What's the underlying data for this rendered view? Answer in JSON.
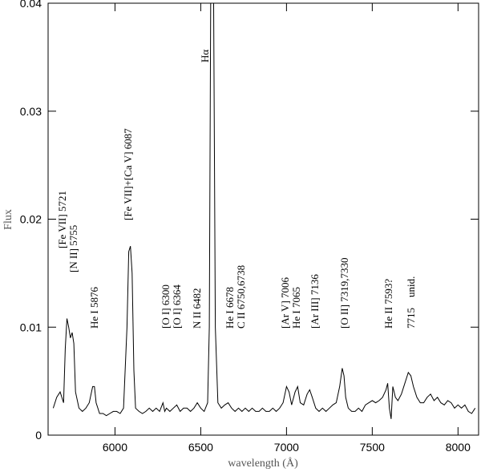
{
  "chart_data": {
    "type": "line",
    "x_label": "wavelength (Å)",
    "y_label": "Flux",
    "color": "#000000",
    "xlim": [
      5610,
      8120
    ],
    "ylim": [
      0,
      0.04
    ],
    "xticks": [
      6000,
      6500,
      7000,
      7500,
      8000
    ],
    "yticks": [
      0,
      0.01,
      0.02,
      0.03,
      0.04
    ],
    "x": [
      5640,
      5660,
      5680,
      5700,
      5710,
      5720,
      5730,
      5740,
      5750,
      5760,
      5770,
      5790,
      5810,
      5830,
      5850,
      5870,
      5880,
      5890,
      5910,
      5930,
      5950,
      5970,
      5990,
      6010,
      6030,
      6050,
      6070,
      6080,
      6090,
      6100,
      6110,
      6120,
      6140,
      6160,
      6180,
      6200,
      6220,
      6240,
      6260,
      6280,
      6290,
      6300,
      6320,
      6340,
      6360,
      6380,
      6400,
      6420,
      6440,
      6460,
      6480,
      6500,
      6520,
      6540,
      6550,
      6558,
      6575,
      6585,
      6600,
      6620,
      6640,
      6660,
      6680,
      6700,
      6720,
      6740,
      6760,
      6780,
      6800,
      6820,
      6840,
      6860,
      6880,
      6900,
      6920,
      6940,
      6960,
      6980,
      7000,
      7015,
      7030,
      7050,
      7065,
      7080,
      7100,
      7120,
      7135,
      7150,
      7170,
      7190,
      7210,
      7230,
      7250,
      7270,
      7290,
      7310,
      7325,
      7335,
      7345,
      7360,
      7380,
      7400,
      7420,
      7440,
      7460,
      7480,
      7500,
      7520,
      7540,
      7560,
      7580,
      7590,
      7600,
      7610,
      7620,
      7635,
      7650,
      7670,
      7690,
      7710,
      7725,
      7740,
      7760,
      7780,
      7800,
      7820,
      7840,
      7860,
      7880,
      7900,
      7920,
      7940,
      7960,
      7980,
      8000,
      8020,
      8040,
      8060,
      8080,
      8100
    ],
    "values": [
      0.0025,
      0.0035,
      0.004,
      0.003,
      0.008,
      0.0108,
      0.01,
      0.009,
      0.0095,
      0.0085,
      0.004,
      0.0025,
      0.0022,
      0.0025,
      0.003,
      0.0045,
      0.0045,
      0.003,
      0.002,
      0.002,
      0.0018,
      0.002,
      0.0022,
      0.0022,
      0.002,
      0.0025,
      0.01,
      0.017,
      0.0175,
      0.015,
      0.006,
      0.0025,
      0.0022,
      0.002,
      0.0022,
      0.0025,
      0.0022,
      0.0025,
      0.0022,
      0.003,
      0.0022,
      0.0025,
      0.0022,
      0.0025,
      0.0028,
      0.0022,
      0.0025,
      0.0025,
      0.0022,
      0.0025,
      0.003,
      0.0025,
      0.0022,
      0.003,
      0.01,
      0.04,
      0.04,
      0.01,
      0.003,
      0.0025,
      0.0028,
      0.003,
      0.0025,
      0.0022,
      0.0025,
      0.0022,
      0.0025,
      0.0022,
      0.0025,
      0.0022,
      0.0022,
      0.0025,
      0.0022,
      0.0022,
      0.0025,
      0.0022,
      0.0025,
      0.003,
      0.0045,
      0.004,
      0.0028,
      0.004,
      0.0045,
      0.003,
      0.0028,
      0.0038,
      0.0042,
      0.0035,
      0.0025,
      0.0022,
      0.0025,
      0.0022,
      0.0025,
      0.0028,
      0.003,
      0.0045,
      0.0062,
      0.0055,
      0.0035,
      0.0025,
      0.0022,
      0.0022,
      0.0025,
      0.0022,
      0.0028,
      0.003,
      0.0032,
      0.003,
      0.0032,
      0.0035,
      0.0042,
      0.0048,
      0.0025,
      0.0015,
      0.0045,
      0.0035,
      0.0032,
      0.0038,
      0.0048,
      0.0058,
      0.0055,
      0.0045,
      0.0035,
      0.003,
      0.003,
      0.0035,
      0.0038,
      0.0032,
      0.0035,
      0.003,
      0.0028,
      0.0032,
      0.003,
      0.0025,
      0.0028,
      0.0025,
      0.0028,
      0.0022,
      0.002,
      0.0025
    ],
    "annotations": [
      "[Fe VII] 5721",
      "[N II] 5755",
      "He I 5876",
      "[Fe VII]+[Ca V] 6087",
      "[O I] 6300",
      "[O I] 6364",
      "N II 6482",
      "Hα",
      "He I 6678",
      "C II 6750,6738",
      "[Ar V] 7006",
      "He I 7065",
      "[Ar III] 7136",
      "[O II] 7319,7330",
      "He II 7593?",
      "7715    unid."
    ]
  }
}
